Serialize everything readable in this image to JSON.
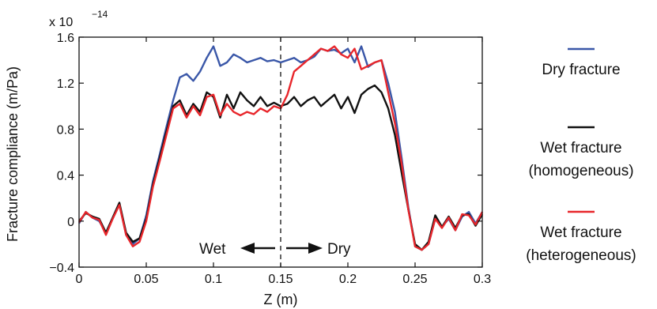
{
  "chart_data": {
    "type": "line",
    "xlabel": "Z (m)",
    "ylabel": "Fracture compliance (m/Pa)",
    "y_multiplier": {
      "base": "x 10",
      "exponent": "−14"
    },
    "xlim": [
      0,
      0.3
    ],
    "ylim": [
      -0.4,
      1.6
    ],
    "x_ticks": [
      0,
      0.05,
      0.1,
      0.15,
      0.2,
      0.25,
      0.3
    ],
    "x_tick_labels": [
      "0",
      "0.05",
      "0.1",
      "0.15",
      "0.2",
      "0.25",
      "0.3"
    ],
    "y_ticks": [
      -0.4,
      0,
      0.4,
      0.8,
      1.2,
      1.6
    ],
    "y_tick_labels": [
      "−0.4",
      "0",
      "0.4",
      "0.8",
      "1.2",
      "1.6"
    ],
    "grid": false,
    "legend_position": "right",
    "divider_x": 0.15,
    "annotations": {
      "left": "Wet",
      "right": "Dry"
    },
    "colors": {
      "dry": "#3a57a8",
      "wet_homogeneous": "#111111",
      "wet_heterogeneous": "#e8262b"
    },
    "series": [
      {
        "name": "Dry fracture",
        "legend_lines": [
          "Dry fracture"
        ],
        "color": "#3a57a8",
        "x": [
          0,
          0.005,
          0.01,
          0.015,
          0.02,
          0.025,
          0.03,
          0.035,
          0.04,
          0.045,
          0.05,
          0.055,
          0.06,
          0.065,
          0.07,
          0.075,
          0.08,
          0.085,
          0.09,
          0.095,
          0.1,
          0.105,
          0.11,
          0.115,
          0.12,
          0.125,
          0.13,
          0.135,
          0.14,
          0.145,
          0.15,
          0.155,
          0.16,
          0.165,
          0.17,
          0.175,
          0.18,
          0.185,
          0.19,
          0.195,
          0.2,
          0.205,
          0.21,
          0.215,
          0.22,
          0.225,
          0.23,
          0.235,
          0.24,
          0.245,
          0.25,
          0.255,
          0.26,
          0.265,
          0.27,
          0.275,
          0.28,
          0.285,
          0.29,
          0.295,
          0.3
        ],
        "values": [
          -0.02,
          0.08,
          0.03,
          0.0,
          -0.1,
          0.02,
          0.15,
          -0.12,
          -0.2,
          -0.15,
          0.05,
          0.35,
          0.58,
          0.82,
          1.05,
          1.25,
          1.28,
          1.22,
          1.3,
          1.42,
          1.52,
          1.35,
          1.38,
          1.45,
          1.42,
          1.38,
          1.4,
          1.42,
          1.39,
          1.4,
          1.38,
          1.4,
          1.42,
          1.38,
          1.4,
          1.43,
          1.5,
          1.48,
          1.49,
          1.46,
          1.5,
          1.38,
          1.52,
          1.34,
          1.38,
          1.4,
          1.2,
          0.95,
          0.55,
          0.12,
          -0.22,
          -0.25,
          -0.2,
          0.02,
          -0.05,
          0.02,
          -0.08,
          0.04,
          0.08,
          -0.02,
          0.08
        ]
      },
      {
        "name": "Wet fracture (homogeneous)",
        "legend_lines": [
          "Wet  fracture",
          "(homogeneous)"
        ],
        "color": "#111111",
        "x": [
          0,
          0.005,
          0.01,
          0.015,
          0.02,
          0.025,
          0.03,
          0.035,
          0.04,
          0.045,
          0.05,
          0.055,
          0.06,
          0.065,
          0.07,
          0.075,
          0.08,
          0.085,
          0.09,
          0.095,
          0.1,
          0.105,
          0.11,
          0.115,
          0.12,
          0.125,
          0.13,
          0.135,
          0.14,
          0.145,
          0.15,
          0.155,
          0.16,
          0.165,
          0.17,
          0.175,
          0.18,
          0.185,
          0.19,
          0.195,
          0.2,
          0.205,
          0.21,
          0.215,
          0.22,
          0.225,
          0.23,
          0.235,
          0.24,
          0.245,
          0.25,
          0.255,
          0.26,
          0.265,
          0.27,
          0.275,
          0.28,
          0.285,
          0.29,
          0.295,
          0.3
        ],
        "values": [
          0.0,
          0.07,
          0.04,
          0.02,
          -0.1,
          0.03,
          0.16,
          -0.1,
          -0.18,
          -0.15,
          0.02,
          0.32,
          0.55,
          0.78,
          1.0,
          1.05,
          0.92,
          1.02,
          0.95,
          1.12,
          1.08,
          0.9,
          1.1,
          0.98,
          1.12,
          1.05,
          1.0,
          1.08,
          1.0,
          1.03,
          1.0,
          1.02,
          1.08,
          1.0,
          1.05,
          1.08,
          1.0,
          1.05,
          1.1,
          0.98,
          1.08,
          0.94,
          1.1,
          1.15,
          1.18,
          1.12,
          0.98,
          0.75,
          0.42,
          0.1,
          -0.2,
          -0.25,
          -0.18,
          0.05,
          -0.05,
          0.04,
          -0.06,
          0.05,
          0.06,
          -0.04,
          0.06
        ]
      },
      {
        "name": "Wet fracture (heterogeneous)",
        "legend_lines": [
          "Wet  fracture",
          "(heterogeneous)"
        ],
        "color": "#e8262b",
        "x": [
          0,
          0.005,
          0.01,
          0.015,
          0.02,
          0.025,
          0.03,
          0.035,
          0.04,
          0.045,
          0.05,
          0.055,
          0.06,
          0.065,
          0.07,
          0.075,
          0.08,
          0.085,
          0.09,
          0.095,
          0.1,
          0.105,
          0.11,
          0.115,
          0.12,
          0.125,
          0.13,
          0.135,
          0.14,
          0.145,
          0.15,
          0.155,
          0.16,
          0.165,
          0.17,
          0.175,
          0.18,
          0.185,
          0.19,
          0.195,
          0.2,
          0.205,
          0.21,
          0.215,
          0.22,
          0.225,
          0.23,
          0.235,
          0.24,
          0.245,
          0.25,
          0.255,
          0.26,
          0.265,
          0.27,
          0.275,
          0.28,
          0.285,
          0.29,
          0.295,
          0.3
        ],
        "values": [
          -0.01,
          0.08,
          0.03,
          0.01,
          -0.12,
          0.02,
          0.14,
          -0.12,
          -0.22,
          -0.18,
          0.0,
          0.3,
          0.52,
          0.75,
          0.98,
          1.02,
          0.9,
          1.0,
          0.92,
          1.08,
          1.1,
          0.92,
          1.02,
          0.95,
          0.92,
          0.95,
          0.93,
          0.98,
          0.95,
          1.0,
          0.98,
          1.1,
          1.3,
          1.35,
          1.4,
          1.45,
          1.5,
          1.48,
          1.52,
          1.45,
          1.42,
          1.5,
          1.32,
          1.35,
          1.38,
          1.4,
          1.12,
          0.85,
          0.5,
          0.1,
          -0.22,
          -0.25,
          -0.2,
          0.02,
          -0.06,
          0.03,
          -0.08,
          0.06,
          0.05,
          -0.03,
          0.08
        ]
      }
    ]
  }
}
